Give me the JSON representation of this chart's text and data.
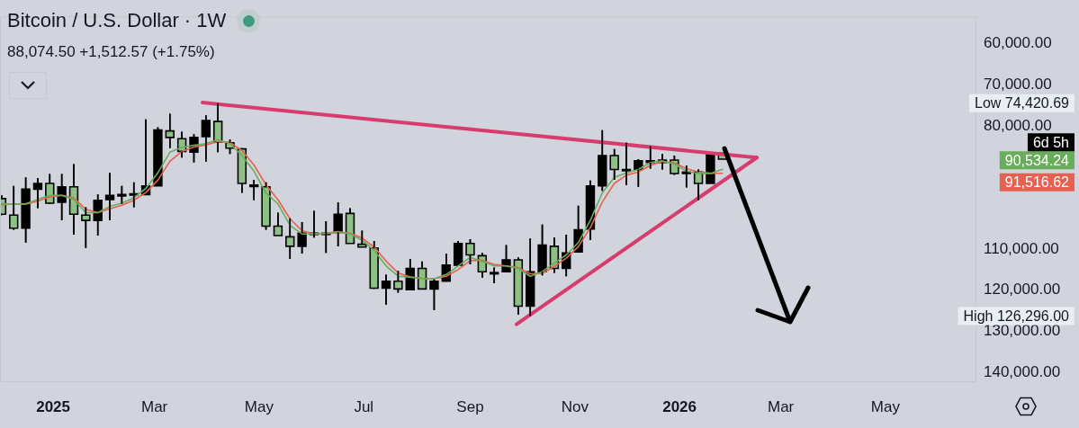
{
  "chart_data": {
    "type": "candlestick",
    "title": "Bitcoin / U.S. Dollar · 1W",
    "subtitle": "88,074.50 +1,512.57 (+1.75%)",
    "x": [
      "2024-12-02",
      "2024-12-09",
      "2024-12-16",
      "2024-12-23",
      "2024-12-30",
      "2025-01-06",
      "2025-01-13",
      "2025-01-20",
      "2025-01-27",
      "2025-02-03",
      "2025-02-10",
      "2025-02-17",
      "2025-02-24",
      "2025-03-03",
      "2025-03-10",
      "2025-03-17",
      "2025-03-24",
      "2025-03-31",
      "2025-04-07",
      "2025-04-14",
      "2025-04-21",
      "2025-04-28",
      "2025-05-05",
      "2025-05-12",
      "2025-05-19",
      "2025-05-26",
      "2025-06-02",
      "2025-06-09",
      "2025-06-16",
      "2025-06-23",
      "2025-06-30",
      "2025-07-07",
      "2025-07-14",
      "2025-07-21",
      "2025-07-28",
      "2025-08-04",
      "2025-08-11",
      "2025-08-18",
      "2025-08-25",
      "2025-09-01",
      "2025-09-08",
      "2025-09-15",
      "2025-09-22",
      "2025-09-29",
      "2025-10-06",
      "2025-10-13",
      "2025-10-20",
      "2025-10-27",
      "2025-11-03",
      "2025-11-10",
      "2025-11-17",
      "2025-11-24",
      "2025-12-01",
      "2025-12-08",
      "2025-12-15",
      "2025-12-22",
      "2025-12-29",
      "2026-01-05",
      "2026-01-12",
      "2026-01-19",
      "2026-01-26"
    ],
    "ohlc": [
      [
        97700,
        101700,
        96900,
        101500
      ],
      [
        101700,
        105300,
        94600,
        104900
      ],
      [
        104900,
        108400,
        92500,
        95400
      ],
      [
        95400,
        100000,
        92700,
        94000
      ],
      [
        94000,
        99000,
        91700,
        98800
      ],
      [
        98600,
        103000,
        91700,
        94800
      ],
      [
        94800,
        106500,
        89300,
        101500
      ],
      [
        101700,
        109700,
        99800,
        103000
      ],
      [
        103000,
        106700,
        96700,
        98100
      ],
      [
        97900,
        103000,
        91400,
        96900
      ],
      [
        96700,
        99000,
        94600,
        96700
      ],
      [
        96500,
        99800,
        93700,
        96500
      ],
      [
        96700,
        96700,
        78400,
        94600
      ],
      [
        94600,
        94600,
        80300,
        81000
      ],
      [
        81200,
        85400,
        77000,
        82800
      ],
      [
        83100,
        87700,
        81400,
        86200
      ],
      [
        86400,
        88900,
        82000,
        82800
      ],
      [
        82600,
        88700,
        77400,
        78700
      ],
      [
        78900,
        86400,
        74420.69,
        83900
      ],
      [
        84100,
        86800,
        83300,
        85400
      ],
      [
        85600,
        96300,
        85400,
        94000
      ],
      [
        94400,
        98100,
        93100,
        94400
      ],
      [
        94800,
        105300,
        93700,
        104400
      ],
      [
        104400,
        106700,
        101100,
        106700
      ],
      [
        107000,
        112400,
        102500,
        109300
      ],
      [
        109300,
        111100,
        103400,
        106100
      ],
      [
        106100,
        107200,
        100700,
        106100
      ],
      [
        106100,
        110900,
        103200,
        106100
      ],
      [
        105900,
        109300,
        98600,
        101500
      ],
      [
        101300,
        108600,
        100000,
        108600
      ],
      [
        108800,
        109500,
        105500,
        109500
      ],
      [
        109700,
        119700,
        108000,
        119500
      ],
      [
        119500,
        123500,
        116200,
        117800
      ],
      [
        117800,
        120600,
        115300,
        119700
      ],
      [
        119900,
        119900,
        112400,
        114700
      ],
      [
        114700,
        119700,
        113000,
        119700
      ],
      [
        119700,
        124800,
        117400,
        117800
      ],
      [
        117800,
        117800,
        111100,
        113900
      ],
      [
        113900,
        113900,
        108000,
        108600
      ],
      [
        108600,
        113700,
        107600,
        111400
      ],
      [
        111600,
        117000,
        110900,
        115500
      ],
      [
        115900,
        118300,
        114500,
        115700
      ],
      [
        115500,
        115500,
        109000,
        112600
      ],
      [
        112600,
        126000,
        112000,
        123900
      ],
      [
        123900,
        126296,
        107400,
        115500
      ],
      [
        115500,
        116400,
        104000,
        109000
      ],
      [
        109300,
        115800,
        107200,
        114700
      ],
      [
        114700,
        116600,
        106500,
        110900
      ],
      [
        110700,
        110700,
        99400,
        105300
      ],
      [
        105100,
        107800,
        93300,
        94600
      ],
      [
        94600,
        95800,
        81000,
        87200
      ],
      [
        87200,
        93100,
        85600,
        90600
      ],
      [
        90600,
        94400,
        84100,
        90600
      ],
      [
        90600,
        94800,
        88100,
        88500
      ],
      [
        88900,
        90400,
        84900,
        88500
      ],
      [
        88900,
        90600,
        86800,
        88300
      ],
      [
        88300,
        91900,
        87200,
        91600
      ],
      [
        91600,
        95000,
        89600,
        91200
      ],
      [
        91200,
        98100,
        90600,
        94000
      ],
      [
        94000,
        94000,
        86600,
        86600
      ],
      [
        86600,
        88074.5,
        86600,
        88074.5
      ]
    ],
    "colors": [
      "#8cc084",
      "#8cc084",
      "#000000",
      "#000000",
      "#8cc084",
      "#000000",
      "#8cc084",
      "#8cc084",
      "#000000",
      "#000000",
      "#000000",
      "#000000",
      "#000000",
      "#000000",
      "#8cc084",
      "#8cc084",
      "#000000",
      "#000000",
      "#8cc084",
      "#8cc084",
      "#8cc084",
      "#000000",
      "#8cc084",
      "#8cc084",
      "#8cc084",
      "#000000",
      "#000000",
      "#000000",
      "#000000",
      "#8cc084",
      "#8cc084",
      "#8cc084",
      "#000000",
      "#8cc084",
      "#000000",
      "#8cc084",
      "#000000",
      "#000000",
      "#000000",
      "#8cc084",
      "#8cc084",
      "#000000",
      "#000000",
      "#8cc084",
      "#000000",
      "#000000",
      "#8cc084",
      "#000000",
      "#000000",
      "#000000",
      "#000000",
      "#8cc084",
      "#000000",
      "#000000",
      "#000000",
      "#000000",
      "#8cc084",
      "#000000",
      "#8cc084",
      "#000000",
      "#8cc084"
    ],
    "series": [
      {
        "type": "line",
        "color": "#67ad5b",
        "values": [
          99000,
          99000,
          99000,
          97900,
          96900,
          96900,
          97900,
          101100,
          101100,
          99600,
          98800,
          97500,
          95200,
          91400,
          86400,
          85200,
          84700,
          84300,
          83300,
          84300,
          87200,
          91000,
          96300,
          99000,
          104200,
          106300,
          106300,
          106100,
          105700,
          106300,
          107800,
          110300,
          114100,
          116600,
          116800,
          117200,
          117200,
          116200,
          114100,
          112000,
          113000,
          114100,
          114100,
          114700,
          116600,
          115500,
          113400,
          111400,
          108400,
          103000,
          96300,
          92500,
          91400,
          90600,
          88900,
          88500,
          89300,
          91000,
          91600,
          91600,
          90534.24
        ]
      },
      {
        "type": "line",
        "color": "#e8604f",
        "values": [
          99200,
          99000,
          99000,
          98300,
          97300,
          96900,
          97500,
          100300,
          101100,
          100200,
          99300,
          98100,
          96200,
          93200,
          88600,
          86200,
          85100,
          84600,
          83800,
          84000,
          86000,
          89500,
          94300,
          98000,
          102600,
          105500,
          106300,
          106200,
          105900,
          106100,
          107300,
          109500,
          112900,
          115800,
          116800,
          117100,
          117200,
          116600,
          115000,
          112800,
          112700,
          113700,
          114100,
          114500,
          116000,
          115900,
          114200,
          112200,
          109400,
          104800,
          98500,
          94000,
          92000,
          91200,
          89600,
          88700,
          89000,
          90400,
          91200,
          91500,
          91516.62
        ]
      },
      {
        "type": "line",
        "color": "#d63c6e",
        "x": [
          "2025-03-29",
          "2026-02-15"
        ],
        "values": [
          74300,
          87700
        ]
      },
      {
        "type": "line",
        "color": "#d63c6e",
        "x": [
          "2025-09-28",
          "2026-02-15"
        ],
        "values": [
          128300,
          87700
        ]
      }
    ],
    "xlim": [
      "2024-12-01",
      "2026-06-23"
    ],
    "xticks": [
      {
        "value": "2025-01-01",
        "label": "2025"
      },
      {
        "value": "2025-03-01",
        "label": "Mar"
      },
      {
        "value": "2025-05-01",
        "label": "May"
      },
      {
        "value": "2025-07-01",
        "label": "Jul"
      },
      {
        "value": "2025-09-01",
        "label": "Sep"
      },
      {
        "value": "2025-11-01",
        "label": "Nov"
      },
      {
        "value": "2026-01-01",
        "label": "2026"
      },
      {
        "value": "2026-03-01",
        "label": "Mar"
      },
      {
        "value": "2026-05-01",
        "label": "May"
      }
    ],
    "ylim": [
      142400,
      53300
    ],
    "yticks": [
      {
        "value": 60000,
        "label": "60,000.00"
      },
      {
        "value": 70000,
        "label": "70,000.00"
      },
      {
        "value": 80000,
        "label": "80,000.00"
      },
      {
        "value": 110000,
        "label": "110,000.00"
      },
      {
        "value": 120000,
        "label": "120,000.00"
      },
      {
        "value": 130000,
        "label": "130,000.00"
      },
      {
        "value": 140000,
        "label": "140,000.00"
      }
    ],
    "annotations": [
      "Low 74,420.69",
      "High 126,296.00",
      "6d 5h",
      "90,534.24",
      "91,516.62"
    ],
    "grid": false,
    "legend": false
  }
}
